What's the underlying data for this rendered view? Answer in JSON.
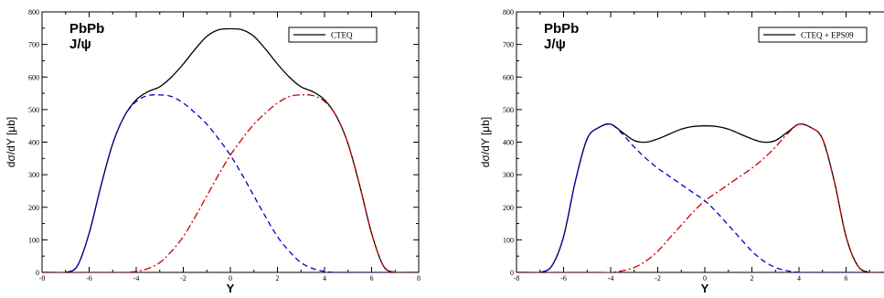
{
  "chart_data": [
    {
      "type": "line",
      "title": "PbPb",
      "subtitle": "J/ψ",
      "xlabel": "Y",
      "ylabel": "dσ/dY [μb]",
      "xlim": [
        -8,
        8
      ],
      "ylim": [
        0,
        800
      ],
      "x_ticks": [
        "-8",
        "-6",
        "-4",
        "-2",
        "0",
        "2",
        "4",
        "6",
        "8"
      ],
      "y_ticks": [
        "0",
        "100",
        "200",
        "300",
        "400",
        "500",
        "600",
        "700",
        "800"
      ],
      "legend": "top-right",
      "x": [
        -8,
        -7.5,
        -7,
        -6.5,
        -6,
        -5.5,
        -5,
        -4.5,
        -4,
        -3.5,
        -3,
        -2.5,
        -2,
        -1.5,
        -1,
        -0.5,
        0,
        0.5,
        1,
        1.5,
        2,
        2.5,
        3,
        3.5,
        4,
        4.5,
        5,
        5.5,
        6,
        6.5,
        7,
        7.5,
        8
      ],
      "series": [
        {
          "name": "CTEQ",
          "color": "#000000",
          "dash": "solid",
          "values": [
            0,
            0,
            0,
            20,
            120,
            265,
            395,
            480,
            530,
            555,
            570,
            600,
            640,
            685,
            725,
            745,
            748,
            745,
            725,
            685,
            640,
            600,
            570,
            555,
            530,
            480,
            395,
            265,
            120,
            20,
            0,
            0,
            0
          ]
        },
        {
          "values": [
            0,
            0,
            0,
            20,
            120,
            265,
            395,
            480,
            525,
            543,
            545,
            540,
            520,
            490,
            455,
            410,
            360,
            300,
            235,
            170,
            110,
            65,
            30,
            12,
            3,
            0,
            0,
            0,
            0,
            0,
            0,
            0,
            0
          ],
          "color": "#0000cc",
          "dash": "dashed"
        },
        {
          "values": [
            0,
            0,
            0,
            0,
            0,
            0,
            0,
            0,
            3,
            12,
            30,
            65,
            110,
            170,
            235,
            300,
            360,
            410,
            455,
            490,
            520,
            540,
            545,
            543,
            525,
            480,
            395,
            265,
            120,
            20,
            0,
            0,
            0
          ],
          "color": "#cc0000",
          "dash": "dashdot"
        }
      ]
    },
    {
      "type": "line",
      "title": "PbPb",
      "subtitle": "J/ψ",
      "xlabel": "Y",
      "ylabel": "dσ/dY [μb]",
      "xlim": [
        -8,
        8
      ],
      "ylim": [
        0,
        800
      ],
      "x_ticks": [
        "-8",
        "-6",
        "-4",
        "-2",
        "0",
        "2",
        "4",
        "6",
        "8"
      ],
      "y_ticks": [
        "0",
        "100",
        "200",
        "300",
        "400",
        "500",
        "600",
        "700",
        "800"
      ],
      "legend": "top-right",
      "x": [
        -8,
        -7.5,
        -7,
        -6.5,
        -6,
        -5.5,
        -5,
        -4.5,
        -4,
        -3.5,
        -3,
        -2.5,
        -2,
        -1.5,
        -1,
        -0.5,
        0,
        0.5,
        1,
        1.5,
        2,
        2.5,
        3,
        3.5,
        4,
        4.5,
        5,
        5.5,
        6,
        6.5,
        7,
        7.5,
        8
      ],
      "series": [
        {
          "name": "CTEQ + EPS09",
          "color": "#000000",
          "dash": "solid",
          "values": [
            0,
            0,
            0,
            20,
            110,
            280,
            410,
            445,
            455,
            430,
            405,
            400,
            410,
            425,
            440,
            448,
            450,
            448,
            440,
            425,
            410,
            400,
            405,
            430,
            455,
            445,
            410,
            280,
            110,
            20,
            0,
            0,
            0
          ]
        },
        {
          "values": [
            0,
            0,
            0,
            20,
            110,
            280,
            410,
            445,
            455,
            425,
            385,
            350,
            320,
            295,
            270,
            245,
            220,
            185,
            145,
            105,
            65,
            35,
            15,
            5,
            0,
            0,
            0,
            0,
            0,
            0,
            0,
            0,
            0
          ],
          "color": "#0000cc",
          "dash": "dashed"
        },
        {
          "values": [
            0,
            0,
            0,
            0,
            0,
            0,
            0,
            0,
            0,
            5,
            15,
            35,
            65,
            105,
            145,
            185,
            220,
            245,
            270,
            295,
            320,
            350,
            385,
            425,
            455,
            445,
            410,
            280,
            110,
            20,
            0,
            0,
            0
          ],
          "color": "#cc0000",
          "dash": "dashdot"
        }
      ]
    }
  ]
}
